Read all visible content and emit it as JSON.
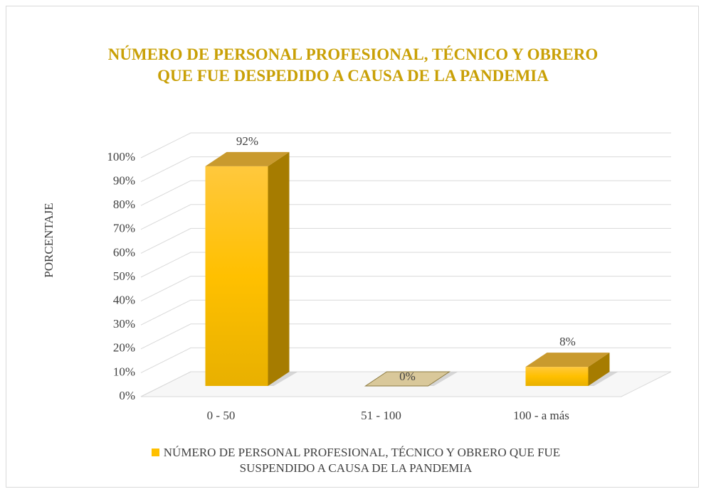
{
  "chart_data": {
    "type": "bar3d",
    "title": "NÚMERO DE PERSONAL PROFESIONAL, TÉCNICO Y OBRERO\nQUE FUE DESPEDIDO A CAUSA DE LA PANDEMIA",
    "ylabel": "PORCENTAJE",
    "categories": [
      "0 - 50",
      "51 - 100",
      "100 - a más"
    ],
    "series": [
      {
        "name": "NÚMERO DE PERSONAL PROFESIONAL, TÉCNICO Y OBRERO QUE FUE\nSUSPENDIDO A CAUSA DE LA PANDEMIA",
        "color": "#ffc000",
        "values": [
          92,
          0,
          8
        ],
        "value_labels": [
          "92%",
          "0%",
          "8%"
        ]
      }
    ],
    "ylim": [
      0,
      100
    ],
    "yticks": [
      {
        "value": 0,
        "label": "0%"
      },
      {
        "value": 10,
        "label": "10%"
      },
      {
        "value": 20,
        "label": "20%"
      },
      {
        "value": 30,
        "label": "30%"
      },
      {
        "value": 40,
        "label": "40%"
      },
      {
        "value": 50,
        "label": "50%"
      },
      {
        "value": 60,
        "label": "60%"
      },
      {
        "value": 70,
        "label": "70%"
      },
      {
        "value": 80,
        "label": "80%"
      },
      {
        "value": 90,
        "label": "90%"
      },
      {
        "value": 100,
        "label": "100%"
      }
    ],
    "grid": true,
    "legend": "bottom"
  }
}
